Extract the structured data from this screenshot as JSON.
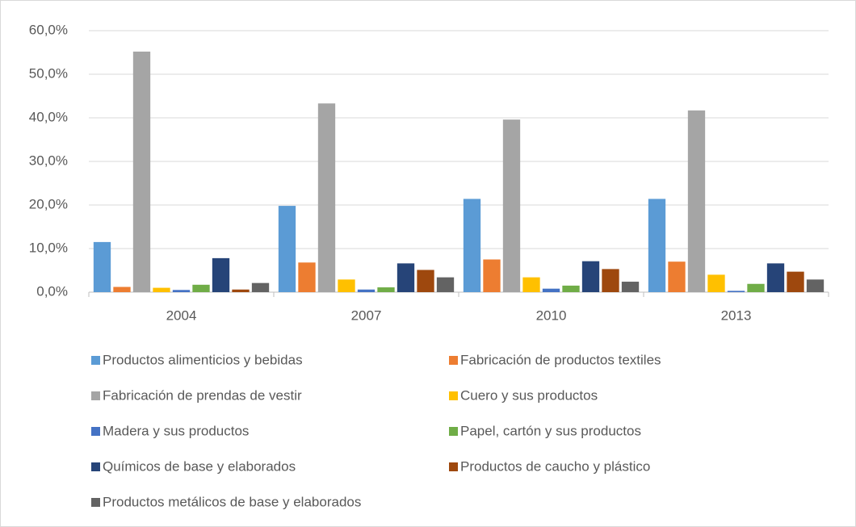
{
  "chart_data": {
    "type": "bar",
    "categories": [
      "2004",
      "2007",
      "2010",
      "2013"
    ],
    "series": [
      {
        "name": "Productos alimenticios y bebidas",
        "color": "#5B9BD5",
        "values": [
          11.5,
          19.8,
          21.4,
          21.4
        ]
      },
      {
        "name": "Fabricación de productos textiles",
        "color": "#ED7D31",
        "values": [
          1.2,
          6.8,
          7.5,
          7.0
        ]
      },
      {
        "name": "Fabricación de prendas de vestir",
        "color": "#A5A5A5",
        "values": [
          55.2,
          43.3,
          39.6,
          41.7
        ]
      },
      {
        "name": "Cuero y sus productos",
        "color": "#FFC000",
        "values": [
          1.0,
          2.9,
          3.4,
          4.0
        ]
      },
      {
        "name": "Madera y sus productos",
        "color": "#4472C4",
        "values": [
          0.5,
          0.6,
          0.8,
          0.3
        ]
      },
      {
        "name": "Papel, cartón y sus productos",
        "color": "#70AD47",
        "values": [
          1.7,
          1.1,
          1.5,
          1.9
        ]
      },
      {
        "name": "Químicos de base y elaborados",
        "color": "#264478",
        "values": [
          7.8,
          6.6,
          7.1,
          6.6
        ]
      },
      {
        "name": "Productos de caucho y plástico",
        "color": "#9E480E",
        "values": [
          0.6,
          5.1,
          5.3,
          4.7
        ]
      },
      {
        "name": "Productos metálicos de base y elaborados",
        "color": "#636363",
        "values": [
          2.1,
          3.4,
          2.4,
          2.9
        ]
      }
    ],
    "ylim": [
      0,
      60
    ],
    "yticks": [
      {
        "value": 0,
        "label": "0,0%"
      },
      {
        "value": 10,
        "label": "10,0%"
      },
      {
        "value": 20,
        "label": "20,0%"
      },
      {
        "value": 30,
        "label": "30,0%"
      },
      {
        "value": 40,
        "label": "40,0%"
      },
      {
        "value": 50,
        "label": "50,0%"
      },
      {
        "value": 60,
        "label": "60,0%"
      }
    ],
    "grid": true,
    "legend": "bottom"
  }
}
